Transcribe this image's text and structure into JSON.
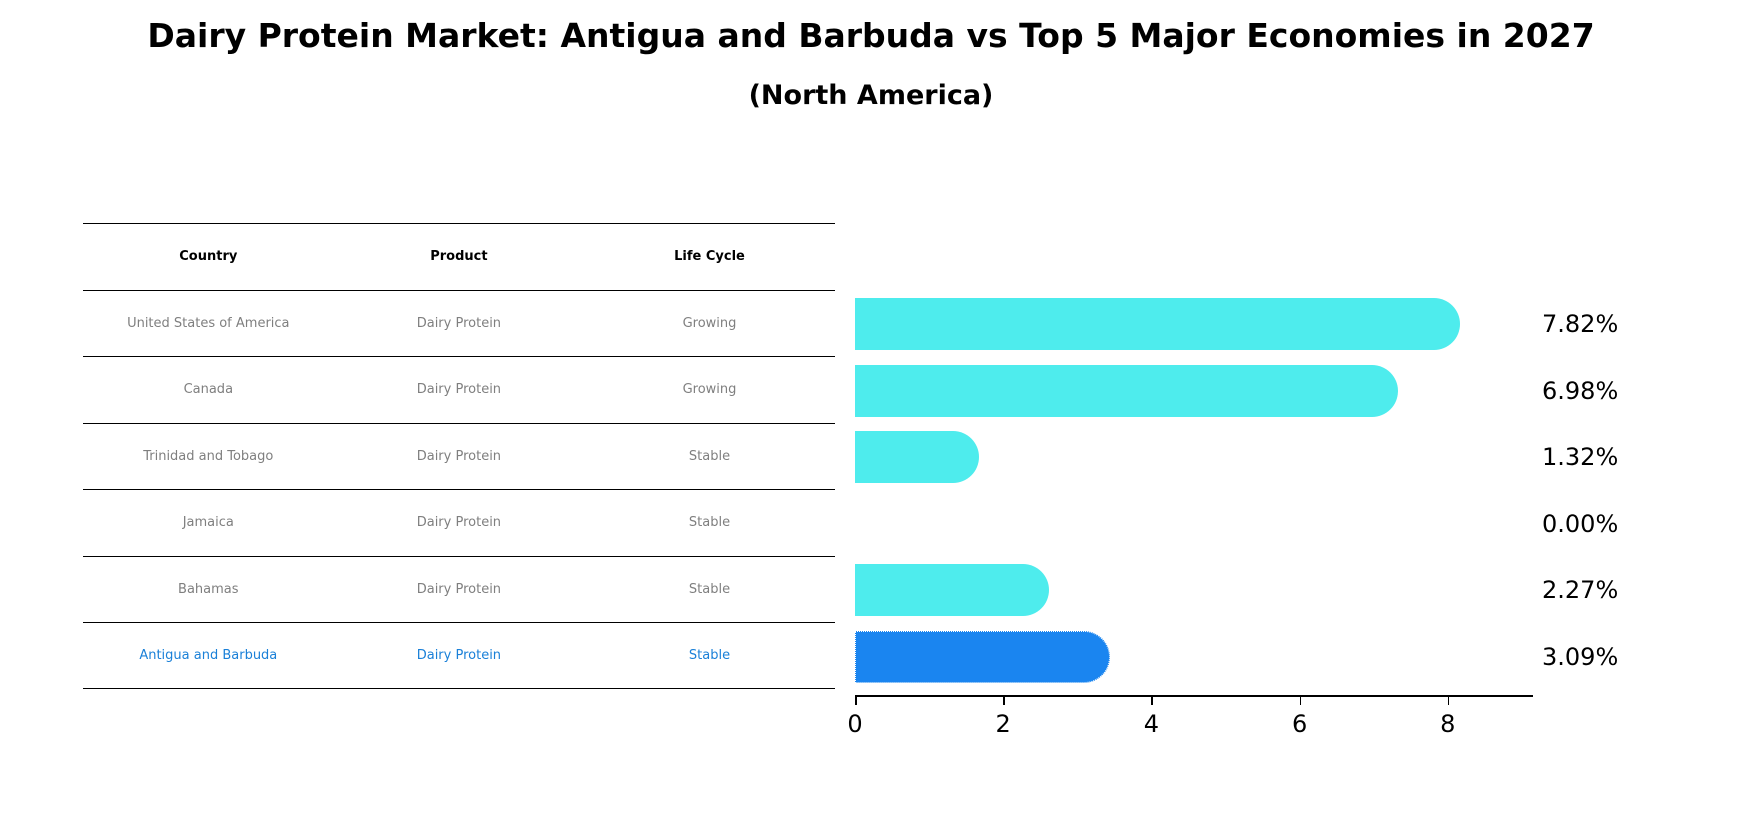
{
  "title": "Dairy Protein Market: Antigua and Barbuda vs Top 5 Major Economies in 2027",
  "subtitle": "(North America)",
  "table": {
    "headers": [
      "Country",
      "Product",
      "Life Cycle"
    ],
    "rows": [
      [
        "United States of America",
        "Dairy Protein",
        "Growing"
      ],
      [
        "Canada",
        "Dairy Protein",
        "Growing"
      ],
      [
        "Trinidad and Tobago",
        "Dairy Protein",
        "Stable"
      ],
      [
        "Jamaica",
        "Dairy Protein",
        "Stable"
      ],
      [
        "Bahamas",
        "Dairy Protein",
        "Stable"
      ],
      [
        "Antigua and Barbuda",
        "Dairy Protein",
        "Stable"
      ]
    ],
    "highlight_row": 5
  },
  "colors": {
    "bar": "#4eeced",
    "highlight_bar": "#1a85f0",
    "highlight_text": "#1a80d8",
    "row_text": "#7f7f7f"
  },
  "chart_data": {
    "type": "bar",
    "orientation": "horizontal",
    "title": "Dairy Protein Market: Antigua and Barbuda vs Top 5 Major Economies in 2027",
    "subtitle": "(North America)",
    "categories": [
      "United States of America",
      "Canada",
      "Trinidad and Tobago",
      "Jamaica",
      "Bahamas",
      "Antigua and Barbuda"
    ],
    "values": [
      7.82,
      6.98,
      1.32,
      0.0,
      2.27,
      3.09
    ],
    "value_labels": [
      "7.82%",
      "6.98%",
      "1.32%",
      "0.00%",
      "2.27%",
      "3.09%"
    ],
    "highlight": "Antigua and Barbuda",
    "xlabel": "",
    "ylabel": "",
    "xlim": [
      0,
      8.2
    ],
    "xticks": [
      0,
      2,
      4,
      6,
      8
    ],
    "grid": false,
    "legend": null
  },
  "axis": {
    "ticks": [
      "0",
      "2",
      "4",
      "6",
      "8"
    ]
  }
}
